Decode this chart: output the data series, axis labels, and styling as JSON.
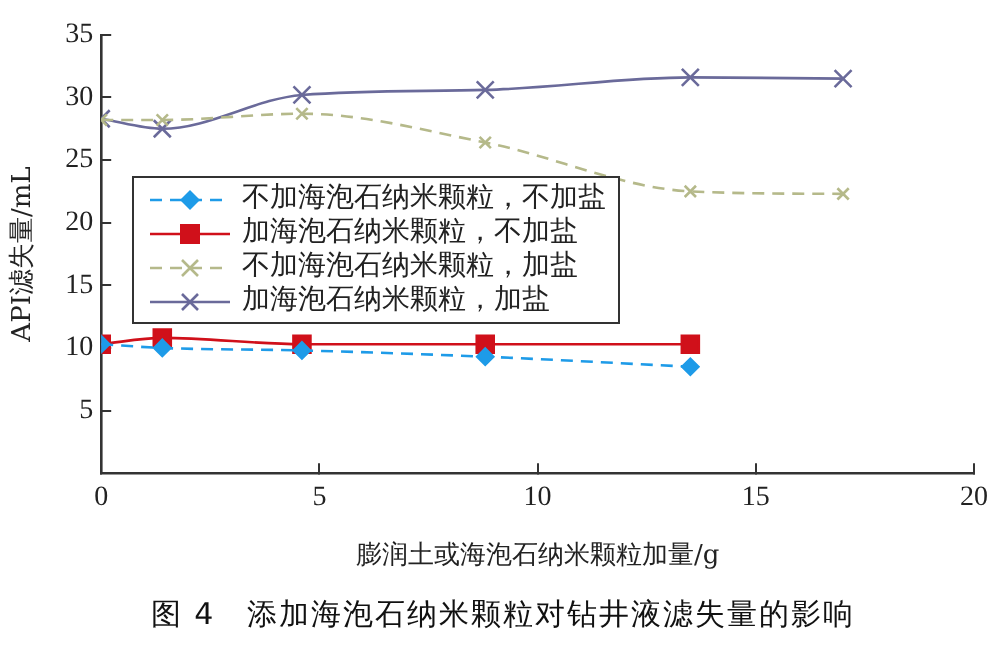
{
  "chart_data": {
    "type": "line",
    "title": "图 4　添加海泡石纳米颗粒对钻井液滤失量的影响",
    "xlabel": "膨润土或海泡石纳米颗粒加量/g",
    "ylabel": "API滤失量/mL",
    "xlim": [
      0,
      20
    ],
    "xticks": [
      0,
      5,
      10,
      15,
      20
    ],
    "ylim": [
      0,
      35
    ],
    "yticks": [
      5,
      10,
      15,
      20,
      25,
      30,
      35
    ],
    "grid": false,
    "legend": "left",
    "series": [
      {
        "name": "不加海泡石纳米颗粒，不加盐",
        "color": "#1e9be8",
        "marker": "diamond",
        "line_style": "dashed",
        "x": [
          0,
          1.4,
          4.6,
          8.8,
          13.5
        ],
        "values": [
          10.3,
          10.0,
          9.8,
          9.3,
          8.5
        ]
      },
      {
        "name": "加海泡石纳米颗粒，不加盐",
        "color": "#d0101a",
        "marker": "square",
        "line_style": "solid",
        "x": [
          0,
          1.4,
          4.6,
          8.8,
          13.5
        ],
        "values": [
          10.3,
          10.8,
          10.3,
          10.3,
          10.3
        ]
      },
      {
        "name": "不加海泡石纳米颗粒，加盐",
        "color": "#b5b98a",
        "marker": "cross",
        "line_style": "dashed",
        "x": [
          0,
          1.4,
          4.6,
          8.8,
          13.5,
          17
        ],
        "values": [
          28.2,
          28.2,
          28.7,
          26.4,
          22.5,
          22.3
        ]
      },
      {
        "name": "加海泡石纳米颗粒，加盐",
        "color": "#6a6a9a",
        "marker": "cross",
        "line_style": "solid",
        "x": [
          0,
          1.4,
          4.6,
          8.8,
          13.5,
          17
        ],
        "values": [
          28.3,
          27.5,
          30.2,
          30.6,
          31.6,
          31.5
        ]
      }
    ]
  }
}
